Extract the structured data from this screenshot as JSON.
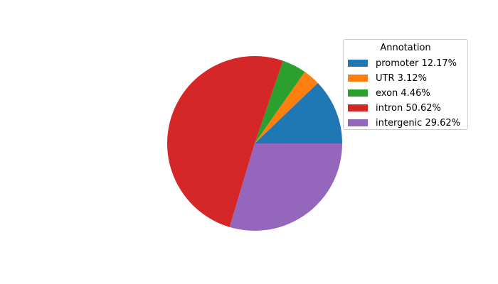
{
  "chart_data": {
    "type": "pie",
    "title": "",
    "start_angle_deg": 0,
    "direction": "counterclockwise",
    "categories": [
      "promoter",
      "UTR",
      "exon",
      "intron",
      "intergenic"
    ],
    "values": [
      12.17,
      3.12,
      4.46,
      50.62,
      29.62
    ],
    "colors": [
      "#1f77b4",
      "#ff7f0e",
      "#2ca02c",
      "#d62728",
      "#9467bd"
    ],
    "legend": {
      "title": "Annotation",
      "placement": "upper-right",
      "entries": [
        "promoter 12.17%",
        "UTR 3.12%",
        "exon 4.46%",
        "intron 50.62%",
        "intergenic 29.62%"
      ]
    }
  }
}
